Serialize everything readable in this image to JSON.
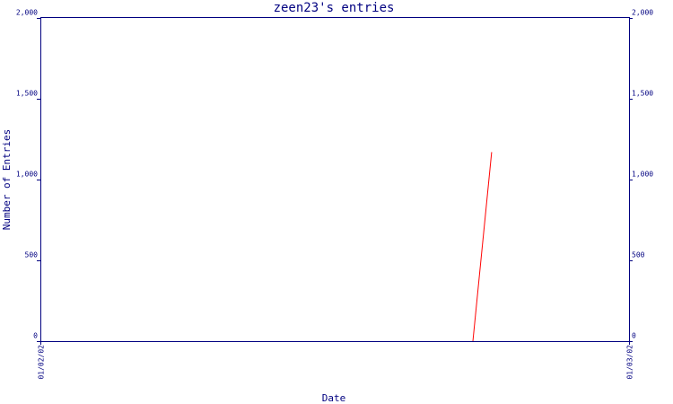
{
  "chart_data": {
    "type": "line",
    "title": "zeen23's entries",
    "xlabel": "Date",
    "ylabel": "Number of Entries",
    "x_ticks": [
      "01/02/02",
      "01/03/02"
    ],
    "y_ticks": [
      "0",
      "500",
      "1,000",
      "1,500",
      "2,000"
    ],
    "y_tick_values": [
      0,
      500,
      1000,
      1500,
      2000
    ],
    "ylim": [
      0,
      2000
    ],
    "xlim": [
      "01/02/02",
      "01/03/02"
    ],
    "y_axis_right": true,
    "grid": false,
    "series": [
      {
        "color": "#ff0000",
        "points": [
          {
            "x": "01/02/02 17:38",
            "y": 0
          },
          {
            "x": "01/02/02 18:24",
            "y": 1170
          }
        ]
      }
    ]
  }
}
